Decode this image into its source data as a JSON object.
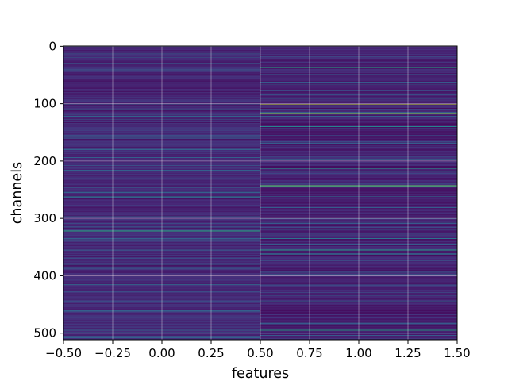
{
  "chart_data": {
    "type": "heatmap",
    "title": "",
    "xlabel": "features",
    "ylabel": "channels",
    "xlim": [
      -0.5,
      1.5
    ],
    "ylim": [
      511.5,
      -0.5
    ],
    "y_inverted": true,
    "grid": true,
    "colormap": "viridis",
    "colorbar": false,
    "x_ticks": [
      -0.5,
      -0.25,
      0.0,
      0.25,
      0.5,
      0.75,
      1.0,
      1.25,
      1.5
    ],
    "x_tick_labels": [
      "−0.50",
      "−0.25",
      "0.00",
      "0.25",
      "0.50",
      "0.75",
      "1.00",
      "1.25",
      "1.50"
    ],
    "y_ticks": [
      0,
      100,
      200,
      300,
      400,
      500
    ],
    "y_tick_labels": [
      "0",
      "100",
      "200",
      "300",
      "400",
      "500"
    ],
    "columns": [
      0,
      1
    ],
    "rows": 512,
    "column_base_value": [
      0.12,
      0.1
    ],
    "highlights": [
      {
        "column": 0,
        "channel": 20,
        "value": 0.32
      },
      {
        "column": 0,
        "channel": 123,
        "value": 0.45
      },
      {
        "column": 0,
        "channel": 160,
        "value": 0.3
      },
      {
        "column": 0,
        "channel": 262,
        "value": 0.48
      },
      {
        "column": 0,
        "channel": 298,
        "value": 0.35
      },
      {
        "column": 0,
        "channel": 322,
        "value": 0.62
      },
      {
        "column": 0,
        "channel": 355,
        "value": 0.3
      },
      {
        "column": 0,
        "channel": 415,
        "value": 0.42
      },
      {
        "column": 0,
        "channel": 462,
        "value": 0.35
      },
      {
        "column": 0,
        "channel": 505,
        "value": 0.32
      },
      {
        "column": 1,
        "channel": 37,
        "value": 0.6
      },
      {
        "column": 1,
        "channel": 85,
        "value": 0.35
      },
      {
        "column": 1,
        "channel": 101,
        "value": 0.9
      },
      {
        "column": 1,
        "channel": 117,
        "value": 0.82
      },
      {
        "column": 1,
        "channel": 140,
        "value": 0.45
      },
      {
        "column": 1,
        "channel": 158,
        "value": 0.35
      },
      {
        "column": 1,
        "channel": 197,
        "value": 0.4
      },
      {
        "column": 1,
        "channel": 213,
        "value": 0.55
      },
      {
        "column": 1,
        "channel": 243,
        "value": 0.75
      },
      {
        "column": 1,
        "channel": 262,
        "value": 0.38
      },
      {
        "column": 1,
        "channel": 312,
        "value": 0.42
      },
      {
        "column": 1,
        "channel": 335,
        "value": 0.38
      },
      {
        "column": 1,
        "channel": 355,
        "value": 0.55
      },
      {
        "column": 1,
        "channel": 362,
        "value": 0.45
      },
      {
        "column": 1,
        "channel": 398,
        "value": 0.35
      },
      {
        "column": 1,
        "channel": 420,
        "value": 0.5
      },
      {
        "column": 1,
        "channel": 445,
        "value": 0.35
      },
      {
        "column": 1,
        "channel": 495,
        "value": 0.55
      }
    ]
  }
}
